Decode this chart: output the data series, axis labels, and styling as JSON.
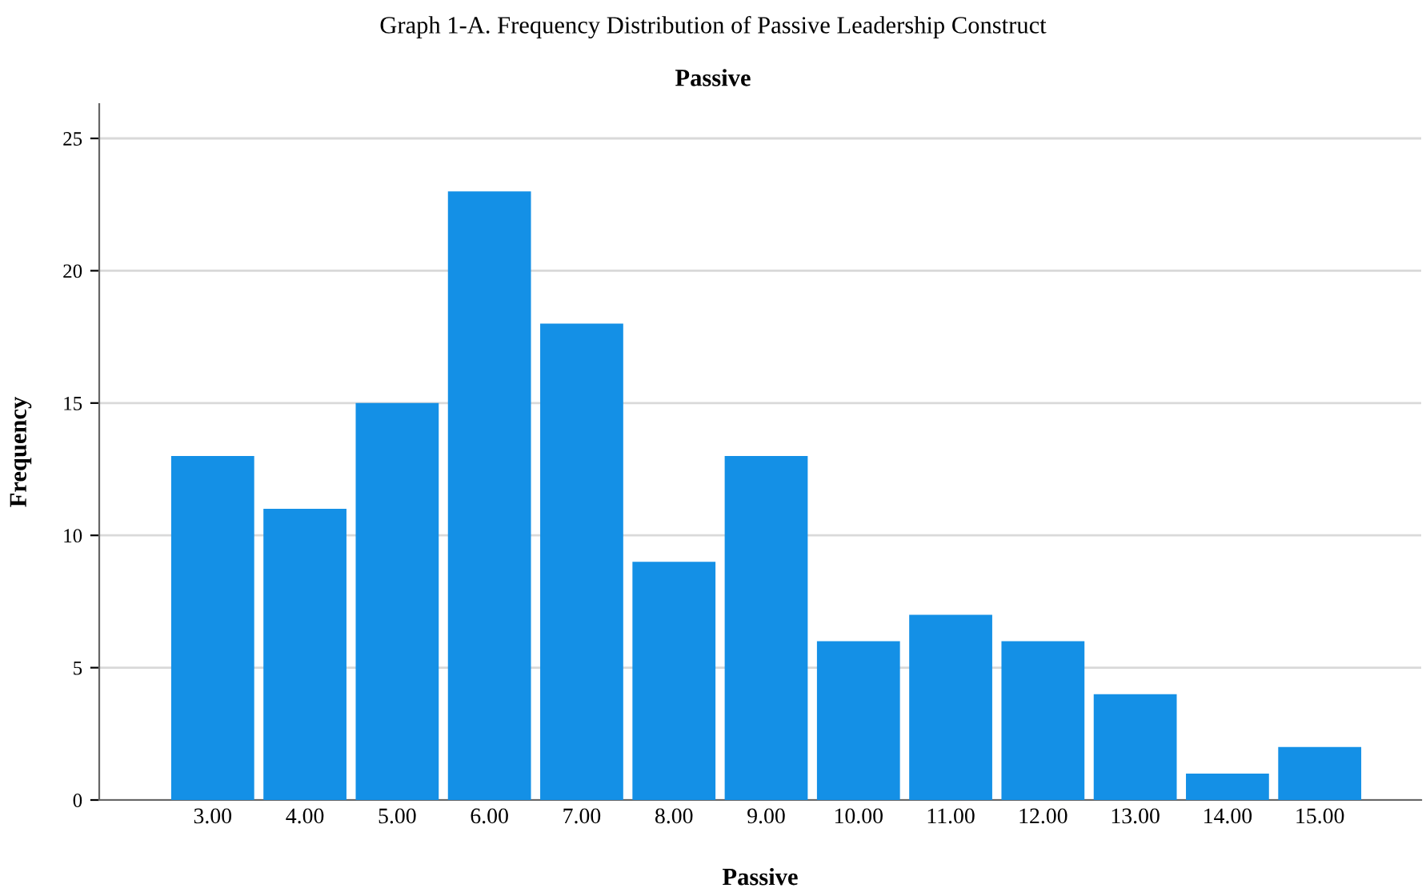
{
  "chart_data": {
    "type": "bar",
    "title": "Graph 1-A. Frequency Distribution of Passive Leadership Construct",
    "subtitle": "Passive",
    "xlabel": "Passive",
    "ylabel": "Frequency",
    "categories": [
      "3.00",
      "4.00",
      "5.00",
      "6.00",
      "7.00",
      "8.00",
      "9.00",
      "10.00",
      "11.00",
      "12.00",
      "13.00",
      "14.00",
      "15.00"
    ],
    "values": [
      13,
      11,
      15,
      23,
      18,
      9,
      13,
      6,
      7,
      6,
      4,
      1,
      2
    ],
    "color": "#1490e6",
    "ylim": [
      0,
      26.3
    ],
    "yticks": [
      0,
      5,
      10,
      15,
      20,
      25
    ],
    "grid": "y"
  }
}
